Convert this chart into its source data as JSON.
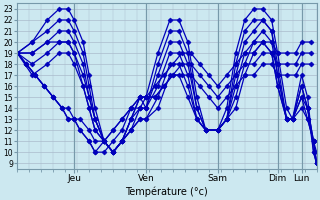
{
  "xlabel": "Température (°c)",
  "bg_color": "#cce8f0",
  "grid_color": "#aabbcc",
  "line_color": "#0000bb",
  "marker": "D",
  "markersize": 2.5,
  "linewidth": 0.9,
  "ylim": [
    8.5,
    23.5
  ],
  "yticks": [
    9,
    10,
    11,
    12,
    13,
    14,
    15,
    16,
    17,
    18,
    19,
    20,
    21,
    22,
    23
  ],
  "xlim": [
    0,
    100
  ],
  "day_positions": [
    19,
    43,
    67,
    87,
    95
  ],
  "day_labels": [
    "Jeu",
    "Ven",
    "Sam",
    "Dim",
    "Lun"
  ],
  "series": [
    [
      0,
      19,
      3,
      18,
      6,
      17,
      9,
      16,
      12,
      15,
      15,
      14,
      17,
      13,
      19,
      13,
      21,
      12,
      24,
      11,
      26,
      10,
      29,
      10,
      32,
      11,
      35,
      12,
      38,
      14,
      41,
      15,
      43,
      15,
      46,
      16,
      49,
      17,
      52,
      18,
      55,
      19,
      58,
      19,
      61,
      18,
      64,
      17,
      67,
      16,
      70,
      17,
      73,
      18,
      76,
      19,
      79,
      19,
      82,
      20,
      85,
      20,
      87,
      19,
      90,
      19,
      93,
      19,
      95,
      20,
      98,
      20
    ],
    [
      0,
      19,
      3,
      18,
      6,
      17,
      9,
      16,
      12,
      15,
      15,
      14,
      17,
      13,
      19,
      13,
      21,
      12,
      24,
      11,
      26,
      10,
      29,
      11,
      32,
      12,
      35,
      13,
      38,
      14,
      41,
      15,
      43,
      15,
      46,
      15,
      49,
      16,
      52,
      17,
      55,
      18,
      58,
      18,
      61,
      17,
      64,
      16,
      67,
      15,
      70,
      16,
      73,
      17,
      76,
      18,
      79,
      18,
      82,
      19,
      85,
      19,
      87,
      18,
      90,
      18,
      93,
      18,
      95,
      19,
      98,
      19
    ],
    [
      0,
      19,
      3,
      18,
      6,
      17,
      9,
      16,
      12,
      15,
      15,
      14,
      17,
      14,
      19,
      13,
      21,
      13,
      24,
      12,
      26,
      11,
      29,
      11,
      32,
      12,
      35,
      13,
      38,
      14,
      41,
      14,
      43,
      15,
      46,
      15,
      49,
      16,
      52,
      17,
      55,
      17,
      58,
      17,
      61,
      16,
      64,
      15,
      67,
      14,
      70,
      15,
      73,
      16,
      76,
      17,
      79,
      17,
      82,
      18,
      85,
      18,
      87,
      17,
      90,
      17,
      93,
      17,
      95,
      18,
      98,
      18
    ],
    [
      0,
      19,
      5,
      20,
      10,
      22,
      14,
      23,
      17,
      23,
      19,
      22,
      22,
      20,
      24,
      17,
      26,
      14,
      29,
      11,
      32,
      10,
      35,
      11,
      38,
      13,
      41,
      15,
      43,
      15,
      47,
      19,
      51,
      22,
      54,
      22,
      57,
      20,
      60,
      15,
      63,
      12,
      67,
      12,
      70,
      14,
      73,
      19,
      76,
      22,
      79,
      23,
      82,
      23,
      85,
      22,
      87,
      19,
      90,
      14,
      92,
      13,
      95,
      17,
      97,
      15,
      99,
      10,
      100,
      9
    ],
    [
      0,
      19,
      5,
      20,
      10,
      21,
      14,
      22,
      17,
      22,
      19,
      21,
      22,
      19,
      24,
      16,
      26,
      13,
      29,
      11,
      32,
      10,
      35,
      11,
      38,
      13,
      41,
      15,
      43,
      14,
      47,
      18,
      51,
      21,
      54,
      21,
      57,
      19,
      60,
      14,
      63,
      12,
      67,
      12,
      70,
      13,
      73,
      18,
      76,
      21,
      79,
      22,
      82,
      22,
      85,
      21,
      87,
      18,
      90,
      13,
      92,
      13,
      95,
      16,
      97,
      14,
      99,
      11,
      100,
      10
    ],
    [
      0,
      19,
      5,
      19,
      10,
      20,
      14,
      21,
      17,
      21,
      19,
      20,
      22,
      18,
      24,
      15,
      26,
      13,
      29,
      11,
      32,
      10,
      35,
      11,
      38,
      13,
      41,
      14,
      43,
      14,
      47,
      17,
      51,
      20,
      54,
      20,
      57,
      18,
      60,
      14,
      63,
      12,
      67,
      12,
      70,
      13,
      73,
      17,
      76,
      20,
      79,
      21,
      82,
      22,
      85,
      21,
      87,
      17,
      90,
      13,
      92,
      13,
      95,
      16,
      97,
      14,
      99,
      11,
      100,
      9
    ],
    [
      0,
      19,
      5,
      19,
      10,
      20,
      14,
      20,
      17,
      20,
      19,
      19,
      22,
      17,
      24,
      15,
      26,
      13,
      29,
      11,
      32,
      10,
      35,
      11,
      38,
      12,
      41,
      14,
      43,
      14,
      47,
      16,
      51,
      19,
      54,
      19,
      57,
      17,
      60,
      13,
      63,
      12,
      67,
      12,
      70,
      13,
      73,
      16,
      76,
      19,
      79,
      20,
      82,
      21,
      85,
      20,
      87,
      17,
      90,
      13,
      92,
      13,
      95,
      15,
      97,
      14,
      99,
      10,
      100,
      9
    ],
    [
      0,
      19,
      5,
      18,
      10,
      19,
      14,
      20,
      17,
      20,
      19,
      19,
      22,
      16,
      24,
      14,
      26,
      12,
      29,
      11,
      32,
      10,
      35,
      11,
      38,
      12,
      41,
      13,
      43,
      13,
      47,
      15,
      51,
      18,
      54,
      18,
      57,
      16,
      60,
      13,
      63,
      12,
      67,
      12,
      70,
      13,
      73,
      15,
      76,
      18,
      79,
      20,
      82,
      20,
      85,
      19,
      87,
      16,
      90,
      13,
      92,
      13,
      95,
      15,
      97,
      13,
      99,
      11,
      100,
      9
    ],
    [
      0,
      19,
      5,
      17,
      10,
      18,
      14,
      19,
      17,
      19,
      19,
      18,
      22,
      16,
      24,
      14,
      26,
      12,
      29,
      11,
      32,
      10,
      35,
      11,
      38,
      12,
      41,
      13,
      43,
      13,
      47,
      14,
      51,
      17,
      54,
      17,
      57,
      15,
      60,
      13,
      63,
      12,
      67,
      12,
      70,
      13,
      73,
      14,
      76,
      17,
      79,
      19,
      82,
      20,
      85,
      19,
      87,
      16,
      90,
      13,
      92,
      13,
      95,
      14,
      97,
      13,
      99,
      11,
      100,
      9
    ]
  ]
}
